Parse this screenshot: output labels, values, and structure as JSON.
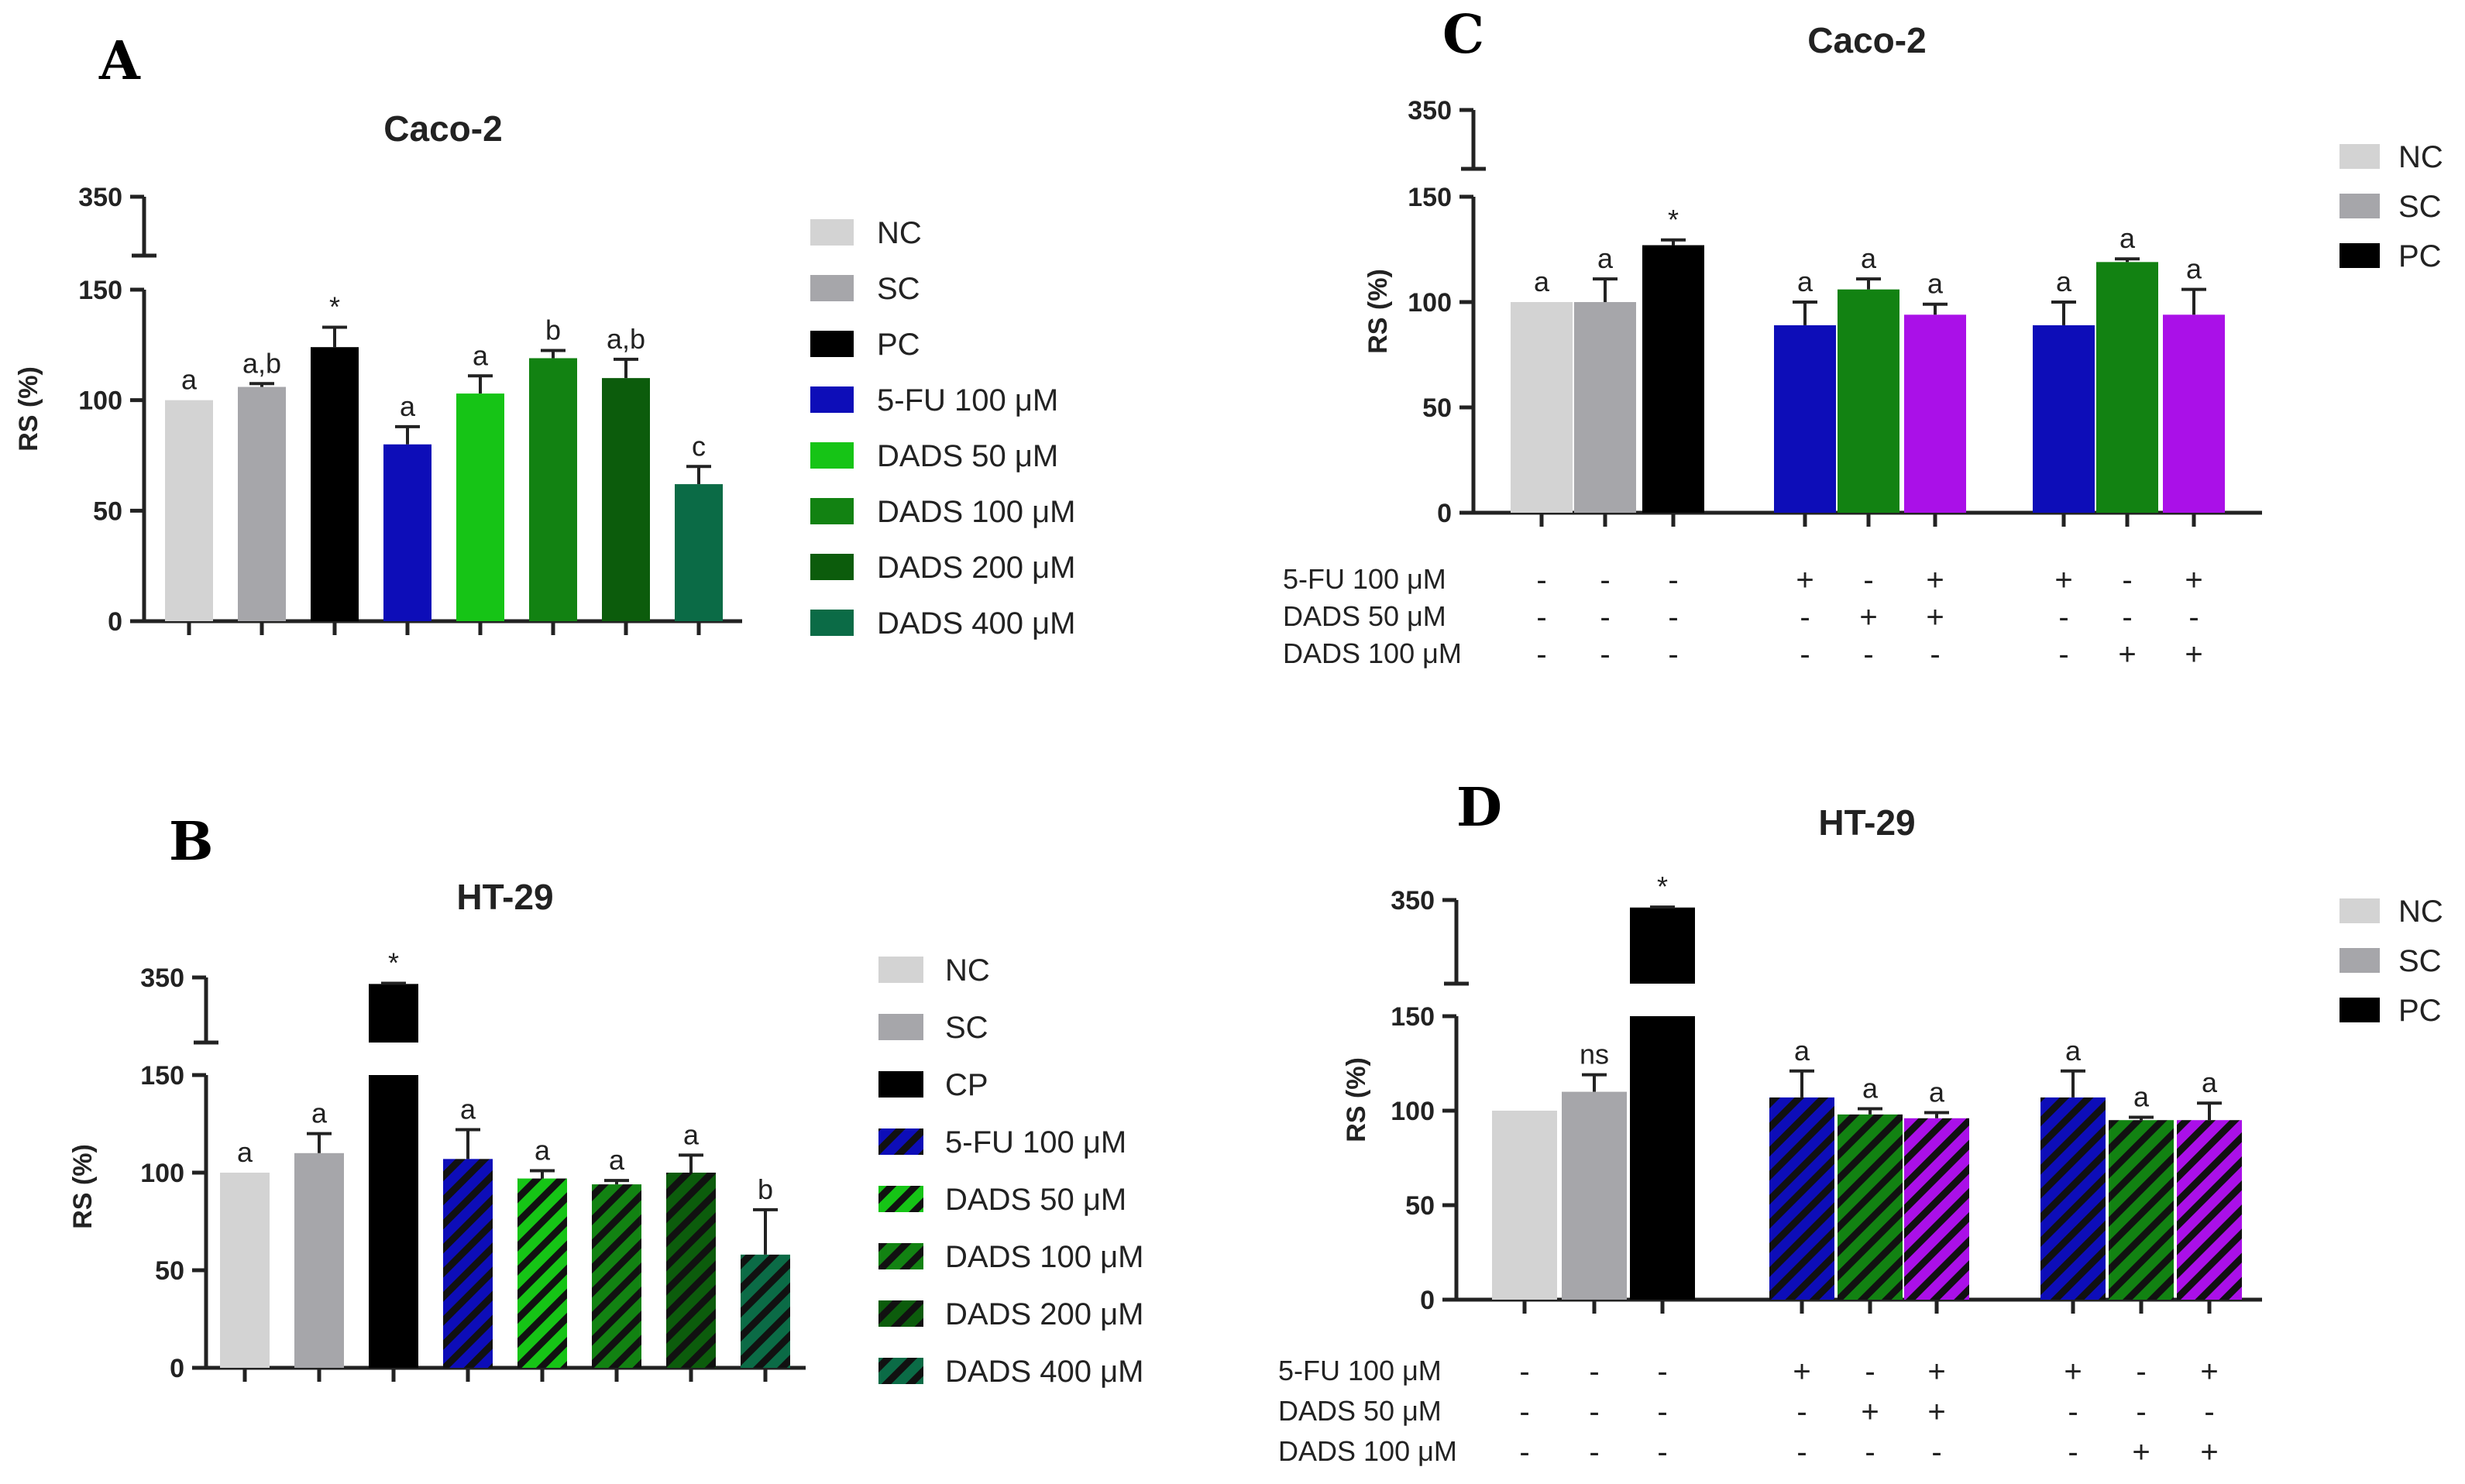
{
  "chart_data": [
    {
      "id": "A",
      "type": "bar",
      "panel": "A",
      "title": "Caco-2",
      "ylabel": "RS (%)",
      "xlabel": "",
      "ylim": [
        0,
        350
      ],
      "axis_break": [
        150,
        350
      ],
      "yticks": [
        "0",
        "50",
        "100",
        "150",
        "350"
      ],
      "categories": [
        "NC",
        "SC",
        "PC",
        "5-FU 100 μM",
        "DADS 50 μM",
        "DADS 100 μM",
        "DADS 200 μM",
        "DADS 400 μM"
      ],
      "values": [
        100,
        106,
        124,
        80,
        103,
        119,
        110,
        62
      ],
      "errors": [
        0,
        1.5,
        9,
        8,
        8,
        3.5,
        8.5,
        8
      ],
      "labels": [
        "a",
        "a,b",
        "*",
        "a",
        "a",
        "b",
        "a,b",
        "c"
      ],
      "colors": [
        "#d3d3d3",
        "#a6a6aa",
        "#000000",
        "#0d0db8",
        "#16c416",
        "#128212",
        "#0c5c0c",
        "#0b6b46"
      ],
      "hatched": false,
      "legend": [
        "NC",
        "SC",
        "PC",
        "5-FU 100 μM",
        "DADS 50 μM",
        "DADS 100 μM",
        "DADS 200 μM",
        "DADS 400 μM"
      ],
      "legend_position": "right"
    },
    {
      "id": "B",
      "type": "bar",
      "panel": "B",
      "title": "HT-29",
      "ylabel": "RS (%)",
      "xlabel": "",
      "ylim": [
        0,
        350
      ],
      "axis_break": [
        150,
        350
      ],
      "yticks": [
        "0",
        "50",
        "100",
        "150",
        "350"
      ],
      "categories": [
        "NC",
        "SC",
        "CP",
        "5-FU 100 μM",
        "DADS 50 μM",
        "DADS 100 μM",
        "DADS 200 μM",
        "DADS 400 μM"
      ],
      "values": [
        100,
        110,
        330,
        107,
        97,
        94,
        100,
        58
      ],
      "errors": [
        0,
        10,
        2,
        15,
        4,
        2,
        9,
        23
      ],
      "labels": [
        "a",
        "a",
        "*",
        "a",
        "a",
        "a",
        "a",
        "b"
      ],
      "colors": [
        "#d3d3d3",
        "#a6a6aa",
        "#000000",
        "#0d0db8",
        "#16c416",
        "#128212",
        "#0c5c0c",
        "#0b6b46"
      ],
      "hatched": true,
      "legend": [
        "NC",
        "SC",
        "CP",
        "5-FU 100 μM",
        "DADS 50 μM",
        "DADS 100 μM",
        "DADS 200 μM",
        "DADS 400 μM"
      ],
      "legend_position": "right"
    },
    {
      "id": "C",
      "type": "bar",
      "panel": "C",
      "title": "Caco-2",
      "ylabel": "RS (%)",
      "xlabel": "",
      "ylim": [
        0,
        350
      ],
      "axis_break": [
        150,
        350
      ],
      "yticks": [
        "0",
        "50",
        "100",
        "150",
        "350"
      ],
      "categories": [
        "NC",
        "SC",
        "PC",
        "5-FU+",
        "DADS 50",
        "5-FU+DADS 50",
        "5-FU",
        "DADS 100",
        "5-FU+DADS 100"
      ],
      "values": [
        100,
        100,
        127,
        89,
        106,
        94,
        89,
        119,
        94
      ],
      "errors": [
        0,
        11,
        2.5,
        11,
        5,
        5,
        11,
        1.5,
        12
      ],
      "labels": [
        "a",
        "a",
        "*",
        "a",
        "a",
        "a",
        "a",
        "a",
        "a"
      ],
      "colors": [
        "#d3d3d3",
        "#a6a6aa",
        "#000000",
        "#0d0db8",
        "#128212",
        "#aa10e8",
        "#0d0db8",
        "#128212",
        "#aa10e8"
      ],
      "hatched": false,
      "legend": [
        "NC",
        "SC",
        "PC"
      ],
      "legend_position": "top-right",
      "treatment_rows": [
        {
          "label": "5-FU 100 μM",
          "marks": [
            "-",
            "-",
            "-",
            "+",
            "-",
            "+",
            "+",
            "-",
            "+"
          ]
        },
        {
          "label": "DADS 50 μM",
          "marks": [
            "-",
            "-",
            "-",
            "-",
            "+",
            "+",
            "-",
            "-",
            "-"
          ]
        },
        {
          "label": "DADS 100 μM",
          "marks": [
            "-",
            "-",
            "-",
            "-",
            "-",
            "-",
            "-",
            "+",
            "+"
          ]
        }
      ]
    },
    {
      "id": "D",
      "type": "bar",
      "panel": "D",
      "title": "HT-29",
      "ylabel": "RS (%)",
      "xlabel": "",
      "ylim": [
        0,
        350
      ],
      "axis_break": [
        150,
        350
      ],
      "yticks": [
        "0",
        "50",
        "100",
        "150",
        "350"
      ],
      "categories": [
        "NC",
        "SC",
        "PC",
        "5-FU+",
        "DADS 50",
        "5-FU+DADS 50",
        "5-FU",
        "DADS 100",
        "5-FU+DADS 100"
      ],
      "values": [
        100,
        110,
        332,
        107,
        98,
        96,
        107,
        95,
        95
      ],
      "errors": [
        0,
        9,
        1,
        14,
        3,
        3,
        14,
        1.5,
        9
      ],
      "labels": [
        "",
        "ns",
        "*",
        "a",
        "a",
        "a",
        "a",
        "a",
        "a"
      ],
      "colors": [
        "#d3d3d3",
        "#a6a6aa",
        "#000000",
        "#0d0db8",
        "#128212",
        "#aa10e8",
        "#0d0db8",
        "#128212",
        "#aa10e8"
      ],
      "hatched": true,
      "legend": [
        "NC",
        "SC",
        "PC"
      ],
      "legend_position": "top-right",
      "treatment_rows": [
        {
          "label": "5-FU 100 μM",
          "marks": [
            "-",
            "-",
            "-",
            "+",
            "-",
            "+",
            "+",
            "-",
            "+"
          ]
        },
        {
          "label": "DADS 50 μM",
          "marks": [
            "-",
            "-",
            "-",
            "-",
            "+",
            "+",
            "-",
            "-",
            "-"
          ]
        },
        {
          "label": "DADS 100 μM",
          "marks": [
            "-",
            "-",
            "-",
            "-",
            "-",
            "-",
            "-",
            "+",
            "+"
          ]
        }
      ]
    }
  ]
}
